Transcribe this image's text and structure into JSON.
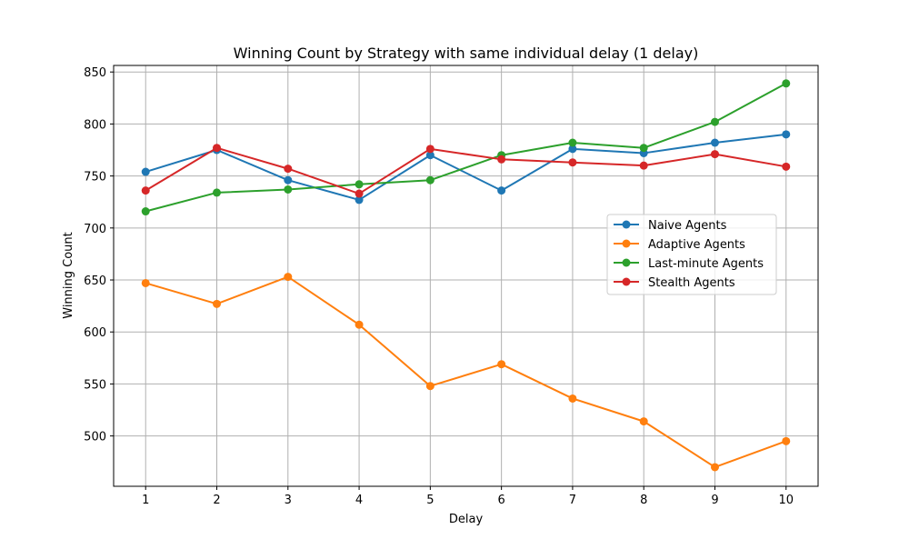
{
  "chart_data": {
    "type": "line",
    "title": "Winning Count by Strategy with same individual delay (1 delay)",
    "xlabel": "Delay",
    "ylabel": "Winning Count",
    "x": [
      1,
      2,
      3,
      4,
      5,
      6,
      7,
      8,
      9,
      10
    ],
    "xlim": [
      0.55,
      10.45
    ],
    "ylim": [
      451.6,
      856.3
    ],
    "xticks": [
      1,
      2,
      3,
      4,
      5,
      6,
      7,
      8,
      9,
      10
    ],
    "yticks": [
      500,
      550,
      600,
      650,
      700,
      750,
      800,
      850
    ],
    "grid": true,
    "legend_position": "center-right",
    "series": [
      {
        "name": "Naive Agents",
        "color": "#1f77b4",
        "values": [
          754,
          775,
          746,
          727,
          770,
          736,
          776,
          772,
          782,
          790
        ]
      },
      {
        "name": "Adaptive Agents",
        "color": "#ff7f0e",
        "values": [
          647,
          627,
          653,
          607,
          548,
          569,
          536,
          514,
          470,
          495
        ]
      },
      {
        "name": "Last-minute Agents",
        "color": "#2ca02c",
        "values": [
          716,
          734,
          737,
          742,
          746,
          770,
          782,
          777,
          802,
          839
        ]
      },
      {
        "name": "Stealth Agents",
        "color": "#d62728",
        "values": [
          736,
          777,
          757,
          733,
          776,
          766,
          763,
          760,
          771,
          759
        ]
      }
    ]
  }
}
